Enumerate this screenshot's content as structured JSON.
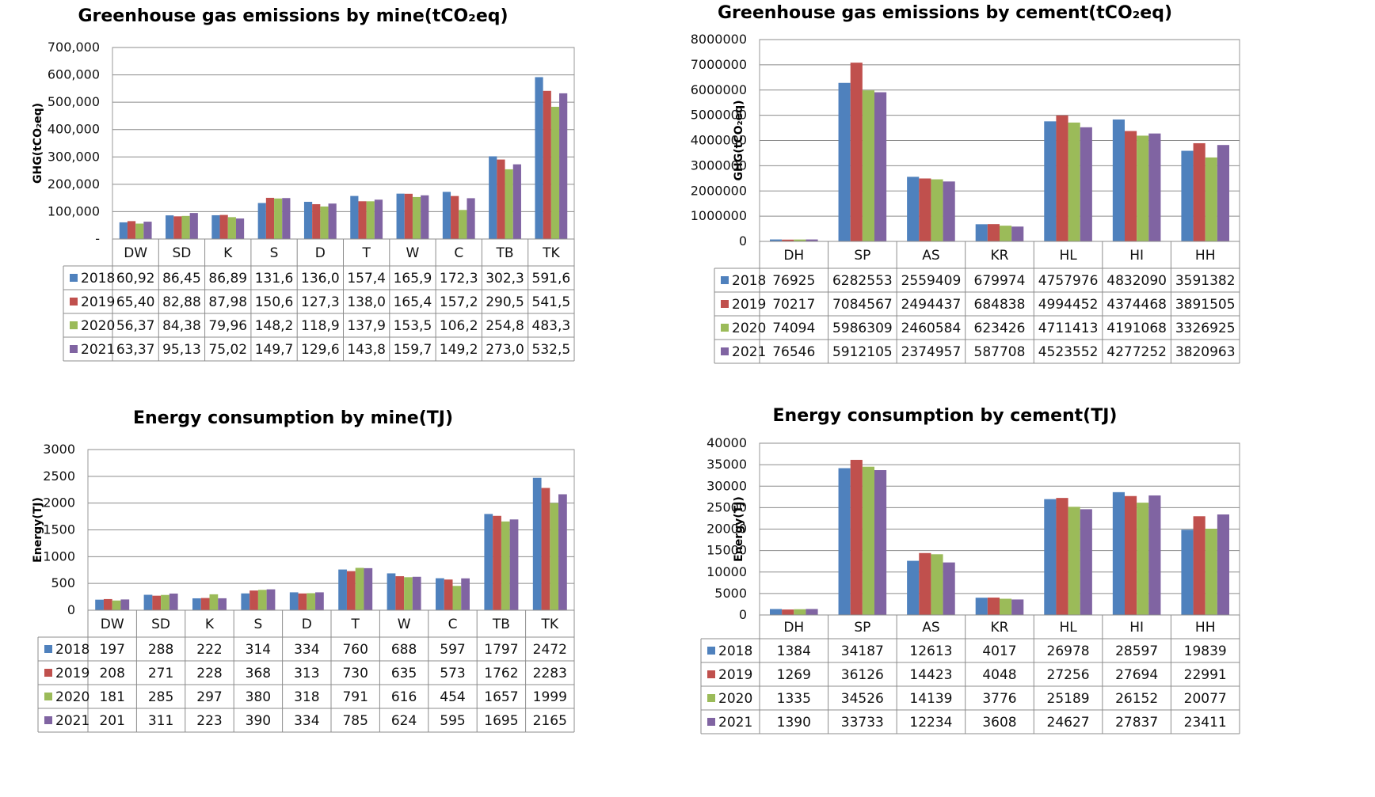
{
  "chart_data": [
    {
      "type": "bar",
      "title": "Greenhouse gas emissions by mine(tCO₂eq)",
      "ylabel": "GHG(tCO₂eq)",
      "ylim": [
        0,
        700000
      ],
      "yticks": [
        "-",
        "100,000",
        "200,000",
        "300,000",
        "400,000",
        "500,000",
        "600,000",
        "700,000"
      ],
      "categories": [
        "DW",
        "SD",
        "K",
        "S",
        "D",
        "T",
        "W",
        "C",
        "TB",
        "TK"
      ],
      "series": [
        {
          "name": "2018",
          "values": [
            60920,
            86450,
            86890,
            131600,
            136000,
            157400,
            165900,
            172300,
            302300,
            591600
          ],
          "labels": [
            "60,92",
            "86,45",
            "86,89",
            "131,6",
            "136,0",
            "157,4",
            "165,9",
            "172,3",
            "302,3",
            "591,6"
          ]
        },
        {
          "name": "2019",
          "values": [
            65400,
            82880,
            87980,
            150600,
            127300,
            138000,
            165400,
            157200,
            290500,
            541500
          ],
          "labels": [
            "65,40",
            "82,88",
            "87,98",
            "150,6",
            "127,3",
            "138,0",
            "165,4",
            "157,2",
            "290,5",
            "541,5"
          ]
        },
        {
          "name": "2020",
          "values": [
            56370,
            84380,
            79960,
            148200,
            118900,
            137900,
            153500,
            106200,
            254800,
            483300
          ],
          "labels": [
            "56,37",
            "84,38",
            "79,96",
            "148,2",
            "118,9",
            "137,9",
            "153,5",
            "106,2",
            "254,8",
            "483,3"
          ]
        },
        {
          "name": "2021",
          "values": [
            63370,
            95130,
            75020,
            149700,
            129600,
            143800,
            159700,
            149200,
            273000,
            532500
          ],
          "labels": [
            "63,37",
            "95,13",
            "75,02",
            "149,7",
            "129,6",
            "143,8",
            "159,7",
            "149,2",
            "273,0",
            "532,5"
          ]
        }
      ],
      "colors": [
        "#4f81bd",
        "#c0504d",
        "#9bbb59",
        "#8064a2"
      ],
      "grid": true,
      "legend": "data-table"
    },
    {
      "type": "bar",
      "title": "Greenhouse gas emissions by cement(tCO₂eq)",
      "ylabel": "GHG(tCO₂eq)",
      "ylim": [
        0,
        8000000
      ],
      "yticks": [
        "0",
        "1000000",
        "2000000",
        "3000000",
        "4000000",
        "5000000",
        "6000000",
        "7000000",
        "8000000"
      ],
      "categories": [
        "DH",
        "SP",
        "AS",
        "KR",
        "HL",
        "HI",
        "HH"
      ],
      "series": [
        {
          "name": "2018",
          "values": [
            76925,
            6282553,
            2559409,
            679974,
            4757976,
            4832090,
            3591382
          ],
          "labels": [
            "76925",
            "6282553",
            "2559409",
            "679974",
            "4757976",
            "4832090",
            "3591382"
          ]
        },
        {
          "name": "2019",
          "values": [
            70217,
            7084567,
            2494437,
            684838,
            4994452,
            4374468,
            3891505
          ],
          "labels": [
            "70217",
            "7084567",
            "2494437",
            "684838",
            "4994452",
            "4374468",
            "3891505"
          ]
        },
        {
          "name": "2020",
          "values": [
            74094,
            5986309,
            2460584,
            623426,
            4711413,
            4191068,
            3326925
          ],
          "labels": [
            "74094",
            "5986309",
            "2460584",
            "623426",
            "4711413",
            "4191068",
            "3326925"
          ]
        },
        {
          "name": "2021",
          "values": [
            76546,
            5912105,
            2374957,
            587708,
            4523552,
            4277252,
            3820963
          ],
          "labels": [
            "76546",
            "5912105",
            "2374957",
            "587708",
            "4523552",
            "4277252",
            "3820963"
          ]
        }
      ],
      "colors": [
        "#4f81bd",
        "#c0504d",
        "#9bbb59",
        "#8064a2"
      ],
      "grid": true,
      "legend": "data-table"
    },
    {
      "type": "bar",
      "title": "Energy consumption by mine(TJ)",
      "ylabel": "Energy(TJ)",
      "ylim": [
        0,
        3000
      ],
      "yticks": [
        "0",
        "500",
        "1000",
        "1500",
        "2000",
        "2500",
        "3000"
      ],
      "categories": [
        "DW",
        "SD",
        "K",
        "S",
        "D",
        "T",
        "W",
        "C",
        "TB",
        "TK"
      ],
      "series": [
        {
          "name": "2018",
          "values": [
            197,
            288,
            222,
            314,
            334,
            760,
            688,
            597,
            1797,
            2472
          ],
          "labels": [
            "197",
            "288",
            "222",
            "314",
            "334",
            "760",
            "688",
            "597",
            "1797",
            "2472"
          ]
        },
        {
          "name": "2019",
          "values": [
            208,
            271,
            228,
            368,
            313,
            730,
            635,
            573,
            1762,
            2283
          ],
          "labels": [
            "208",
            "271",
            "228",
            "368",
            "313",
            "730",
            "635",
            "573",
            "1762",
            "2283"
          ]
        },
        {
          "name": "2020",
          "values": [
            181,
            285,
            297,
            380,
            318,
            791,
            616,
            454,
            1657,
            1999
          ],
          "labels": [
            "181",
            "285",
            "297",
            "380",
            "318",
            "791",
            "616",
            "454",
            "1657",
            "1999"
          ]
        },
        {
          "name": "2021",
          "values": [
            201,
            311,
            223,
            390,
            334,
            785,
            624,
            595,
            1695,
            2165
          ],
          "labels": [
            "201",
            "311",
            "223",
            "390",
            "334",
            "785",
            "624",
            "595",
            "1695",
            "2165"
          ]
        }
      ],
      "colors": [
        "#4f81bd",
        "#c0504d",
        "#9bbb59",
        "#8064a2"
      ],
      "grid": true,
      "legend": "data-table"
    },
    {
      "type": "bar",
      "title": "Energy consumption by cement(TJ)",
      "ylabel": "Energy(TJ)",
      "ylim": [
        0,
        40000
      ],
      "yticks": [
        "0",
        "5000",
        "10000",
        "15000",
        "20000",
        "25000",
        "30000",
        "35000",
        "40000"
      ],
      "categories": [
        "DH",
        "SP",
        "AS",
        "KR",
        "HL",
        "HI",
        "HH"
      ],
      "series": [
        {
          "name": "2018",
          "values": [
            1384,
            34187,
            12613,
            4017,
            26978,
            28597,
            19839
          ],
          "labels": [
            "1384",
            "34187",
            "12613",
            "4017",
            "26978",
            "28597",
            "19839"
          ]
        },
        {
          "name": "2019",
          "values": [
            1269,
            36126,
            14423,
            4048,
            27256,
            27694,
            22991
          ],
          "labels": [
            "1269",
            "36126",
            "14423",
            "4048",
            "27256",
            "27694",
            "22991"
          ]
        },
        {
          "name": "2020",
          "values": [
            1335,
            34526,
            14139,
            3776,
            25189,
            26152,
            20077
          ],
          "labels": [
            "1335",
            "34526",
            "14139",
            "3776",
            "25189",
            "26152",
            "20077"
          ]
        },
        {
          "name": "2021",
          "values": [
            1390,
            33733,
            12234,
            3608,
            24627,
            27837,
            23411
          ],
          "labels": [
            "1390",
            "33733",
            "12234",
            "3608",
            "24627",
            "27837",
            "23411"
          ]
        }
      ],
      "colors": [
        "#4f81bd",
        "#c0504d",
        "#9bbb59",
        "#8064a2"
      ],
      "grid": true,
      "legend": "data-table"
    }
  ]
}
